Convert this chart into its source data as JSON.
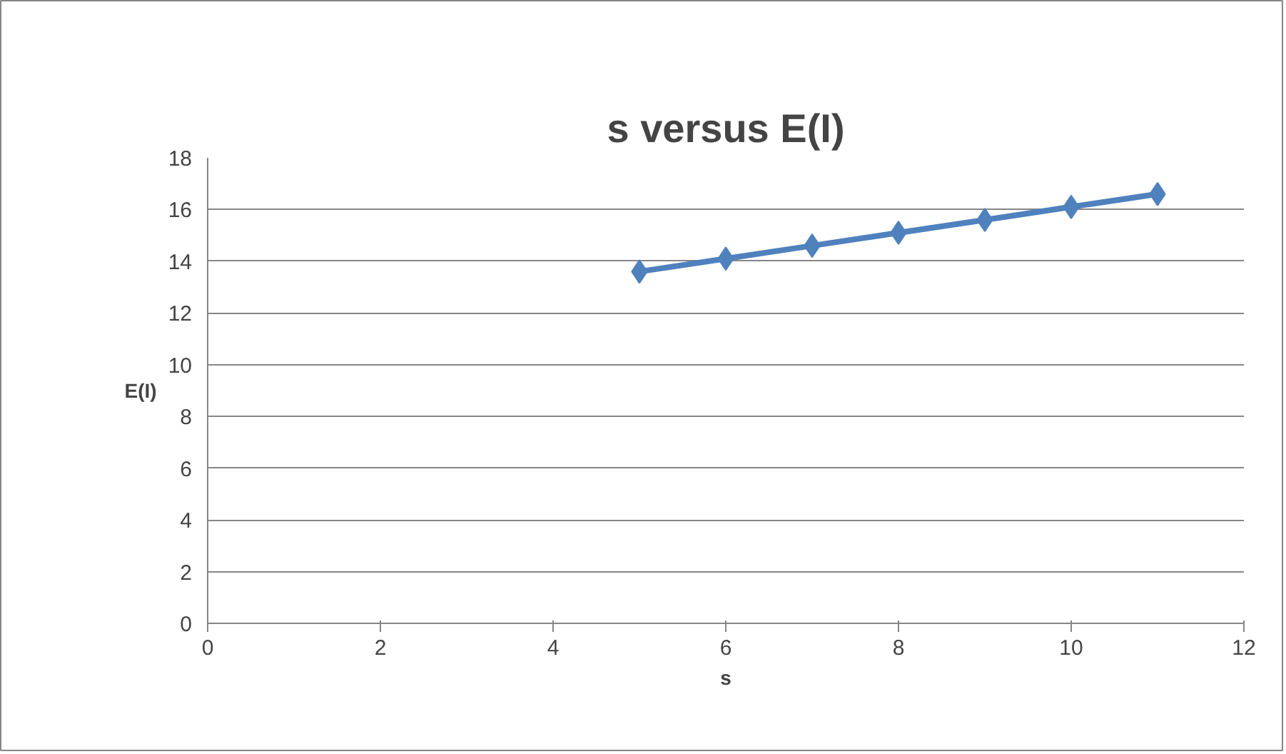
{
  "chart_data": {
    "type": "line",
    "title": "s versus E(I)",
    "xlabel": "s",
    "ylabel": "E(I)",
    "x": [
      5,
      6,
      7,
      8,
      9,
      10,
      11
    ],
    "series": [
      {
        "color": "#4f81bd",
        "values": [
          13.6,
          14.1,
          14.6,
          15.1,
          15.6,
          16.1,
          16.6
        ]
      }
    ],
    "xlim": [
      0,
      12
    ],
    "xticks": [
      0,
      2,
      4,
      6,
      8,
      10,
      12
    ],
    "ylim": [
      0,
      18
    ],
    "yticks": [
      0,
      2,
      4,
      6,
      8,
      10,
      12,
      14,
      16,
      18
    ],
    "grid": "y",
    "marker": "diamond",
    "line_style": "solid"
  }
}
